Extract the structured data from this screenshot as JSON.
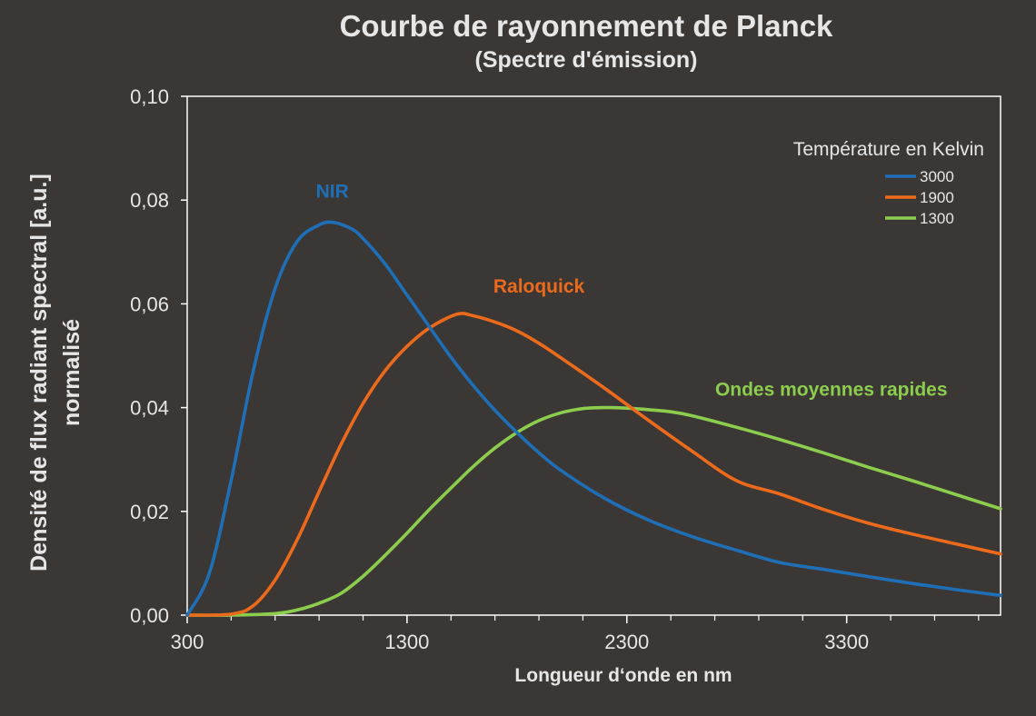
{
  "chart_data": {
    "type": "line",
    "title": "Courbe de rayonnement de Planck",
    "subtitle": "(Spectre d'émission)",
    "xlabel": "Longueur d‘onde en nm",
    "ylabel_line1": "Densité de flux radiant spectral [a.u.]",
    "ylabel_line2": "normalisé",
    "xlim": [
      300,
      4000
    ],
    "ylim": [
      0,
      0.1
    ],
    "x_ticks": [
      300,
      1300,
      2300,
      3300
    ],
    "x_tick_labels": [
      "300",
      "1300",
      "2300",
      "3300"
    ],
    "x_minor_step": 200,
    "y_ticks": [
      0,
      0.02,
      0.04,
      0.06,
      0.08,
      0.1
    ],
    "y_tick_labels": [
      "0,00",
      "0,02",
      "0,04",
      "0,06",
      "0,08",
      "0,10"
    ],
    "grid": false,
    "legend": {
      "title": "Température en Kelvin",
      "placement": "top-right",
      "entries": [
        "3000",
        "1900",
        "1300"
      ]
    },
    "series": [
      {
        "name": "3000",
        "color": "#1f6fb6",
        "annotation": "NIR",
        "annotation_at": [
          960,
          0.0805
        ],
        "x": [
          300,
          400,
          500,
          600,
          700,
          800,
          900,
          966,
          1050,
          1100,
          1200,
          1300,
          1400,
          1500,
          1600,
          1700,
          1800,
          1900,
          2000,
          2200,
          2400,
          2600,
          2800,
          3000,
          3200,
          3400,
          3600,
          3800,
          4000
        ],
        "y": [
          0,
          0.008,
          0.026,
          0.047,
          0.063,
          0.072,
          0.0752,
          0.0757,
          0.0744,
          0.0726,
          0.0677,
          0.0617,
          0.0557,
          0.0497,
          0.0443,
          0.0395,
          0.0352,
          0.0313,
          0.0279,
          0.0225,
          0.0183,
          0.0151,
          0.0125,
          0.0101,
          0.0088,
          0.0074,
          0.0061,
          0.0049,
          0.0038
        ]
      },
      {
        "name": "1900",
        "color": "#ec6a1b",
        "annotation": "Raloquick",
        "annotation_at": [
          1900,
          0.0622
        ],
        "x": [
          300,
          500,
          600,
          700,
          800,
          900,
          1000,
          1100,
          1200,
          1300,
          1400,
          1526,
          1600,
          1700,
          1800,
          1900,
          2000,
          2200,
          2400,
          2600,
          2800,
          3000,
          3200,
          3400,
          3600,
          3800,
          4000
        ],
        "y": [
          0,
          0.0002,
          0.0018,
          0.0068,
          0.0145,
          0.0238,
          0.0329,
          0.0408,
          0.0471,
          0.0518,
          0.0553,
          0.058,
          0.0577,
          0.0565,
          0.0548,
          0.0524,
          0.0496,
          0.0437,
          0.0375,
          0.0315,
          0.0259,
          0.0233,
          0.0203,
          0.0177,
          0.0156,
          0.0137,
          0.0118
        ]
      },
      {
        "name": "1300",
        "color": "#8ccd4e",
        "annotation": "Ondes moyennes rapides",
        "annotation_at": [
          3230,
          0.0423
        ],
        "x": [
          300,
          500,
          700,
          800,
          900,
          1000,
          1100,
          1200,
          1300,
          1400,
          1500,
          1600,
          1700,
          1800,
          1900,
          2000,
          2100,
          2200,
          2300,
          2400,
          2500,
          2600,
          2800,
          3000,
          3200,
          3400,
          3600,
          3800,
          4000
        ],
        "y": [
          0,
          0,
          0.0003,
          0.001,
          0.0023,
          0.0042,
          0.0075,
          0.0115,
          0.0158,
          0.0203,
          0.0245,
          0.0286,
          0.0322,
          0.0352,
          0.0375,
          0.039,
          0.0398,
          0.04,
          0.0399,
          0.0396,
          0.0392,
          0.0384,
          0.0362,
          0.0338,
          0.0312,
          0.0285,
          0.0259,
          0.0232,
          0.0205
        ]
      }
    ]
  }
}
